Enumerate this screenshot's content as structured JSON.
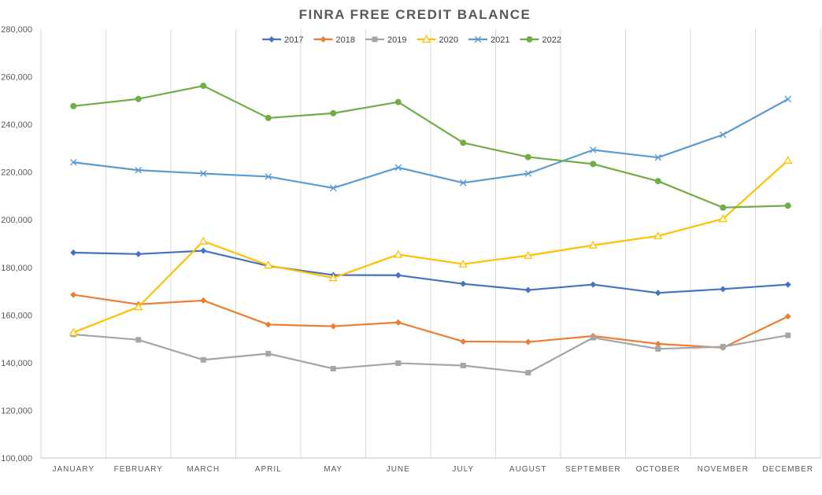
{
  "chart_data": {
    "type": "line",
    "title": "FINRA FREE CREDIT BALANCE",
    "xlabel": "",
    "ylabel": "",
    "ylim": [
      100000,
      280000
    ],
    "yticks": [
      "100,000",
      "120,000",
      "140,000",
      "160,000",
      "180,000",
      "200,000",
      "220,000",
      "240,000",
      "260,000",
      "280,000"
    ],
    "grid": "vertical",
    "legend_position": "top-center",
    "categories": [
      "JANUARY",
      "FEBRUARY",
      "MARCH",
      "APRIL",
      "MAY",
      "JUNE",
      "JULY",
      "AUGUST",
      "SEPTEMBER",
      "OCTOBER",
      "NOVEMBER",
      "DECEMBER"
    ],
    "series": [
      {
        "name": "2017",
        "color": "#4472c4",
        "marker": "diamond",
        "values": [
          186200,
          185600,
          187000,
          180600,
          176800,
          176700,
          173100,
          170500,
          172800,
          169300,
          170900,
          172800
        ]
      },
      {
        "name": "2018",
        "color": "#ed7d31",
        "marker": "diamond",
        "values": [
          168500,
          164500,
          166100,
          156000,
          155300,
          156900,
          148900,
          148700,
          151200,
          147900,
          146300,
          159400
        ]
      },
      {
        "name": "2019",
        "color": "#a5a5a5",
        "marker": "square",
        "values": [
          151900,
          149600,
          141200,
          143800,
          137500,
          139800,
          138800,
          135800,
          150500,
          145800,
          146700,
          151500
        ]
      },
      {
        "name": "2020",
        "color": "#ffc000",
        "marker": "triangle",
        "values": [
          152700,
          163400,
          191000,
          180900,
          175600,
          185400,
          181400,
          185000,
          189300,
          193200,
          200400,
          224900
        ]
      },
      {
        "name": "2021",
        "color": "#5b9bd5",
        "marker": "x",
        "values": [
          224100,
          220800,
          219400,
          218100,
          213300,
          221900,
          215500,
          219400,
          229300,
          226100,
          235700,
          250600
        ]
      },
      {
        "name": "2022",
        "color": "#70ad47",
        "marker": "circle",
        "values": [
          247700,
          250700,
          256200,
          242700,
          244700,
          249400,
          232300,
          226300,
          223400,
          216200,
          205100,
          205900
        ]
      }
    ]
  }
}
